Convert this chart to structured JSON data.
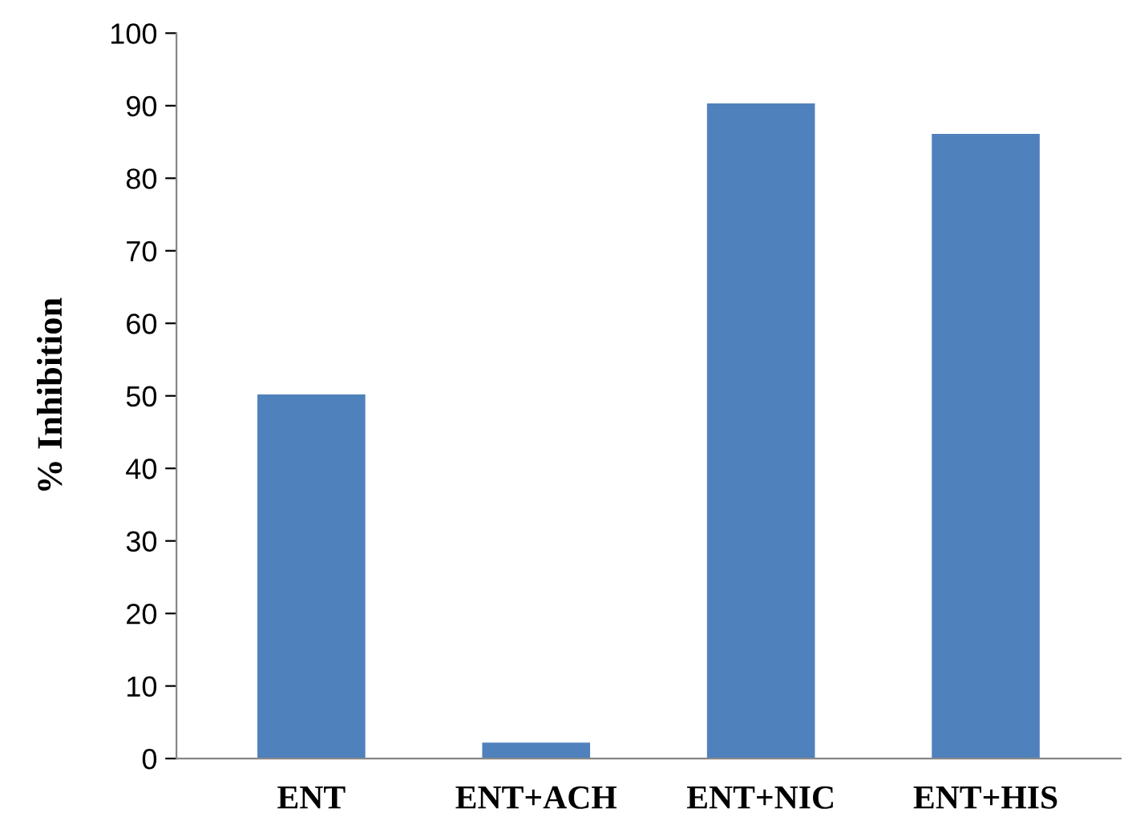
{
  "chart_data": {
    "type": "bar",
    "ylabel": "% Inhibition",
    "categories": [
      "ENT",
      "ENT+ACH",
      "ENT+NIC",
      "ENT+HIS"
    ],
    "values": [
      50.2,
      2.2,
      90.3,
      86.1
    ],
    "color": "#4f81bd",
    "ylim": [
      0,
      100
    ],
    "yticks": [
      0,
      10,
      20,
      30,
      40,
      50,
      60,
      70,
      80,
      90,
      100
    ],
    "grid": false,
    "legend": false
  }
}
